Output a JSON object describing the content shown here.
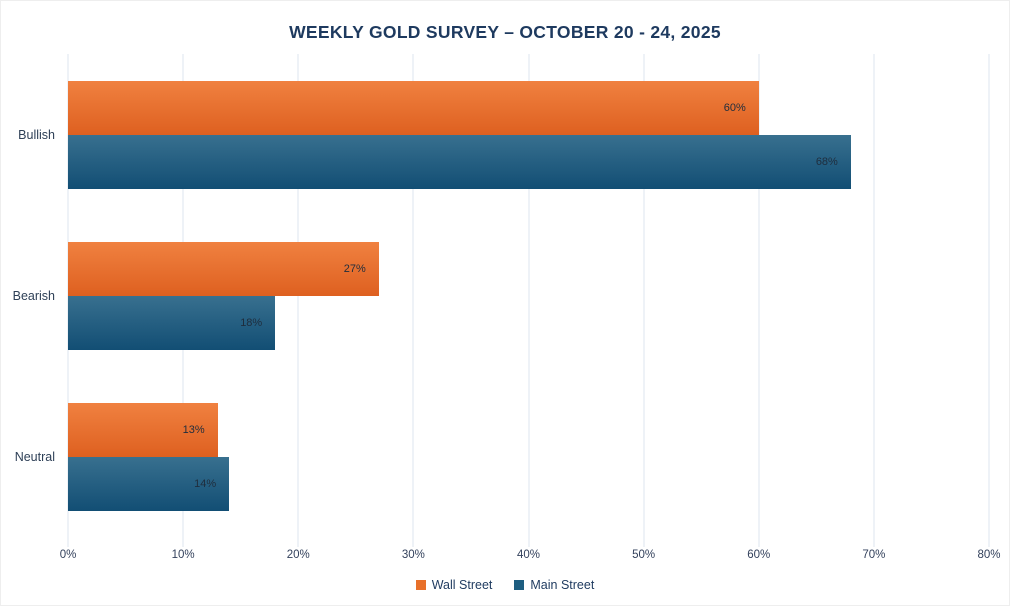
{
  "chart_data": {
    "type": "bar",
    "orientation": "horizontal",
    "title": "WEEKLY GOLD SURVEY – OCTOBER 20 - 24, 2025",
    "categories": [
      "Bullish",
      "Bearish",
      "Neutral"
    ],
    "series": [
      {
        "name": "Wall Street",
        "values": [
          60,
          27,
          13
        ],
        "legend_color": "#e8702a",
        "color_top": "#f08140",
        "color_bottom": "#de6020"
      },
      {
        "name": "Main Street",
        "values": [
          68,
          18,
          14
        ],
        "legend_color": "#1e5e81",
        "color_top": "#38708f",
        "color_bottom": "#124e74"
      }
    ],
    "value_suffix": "%",
    "data_labels": true,
    "x_axis": {
      "min": 0,
      "max": 80,
      "step": 10,
      "tick_labels": [
        "0%",
        "10%",
        "20%",
        "30%",
        "40%",
        "50%",
        "60%",
        "70%",
        "80%"
      ]
    },
    "grid": true,
    "legend_position": "bottom"
  },
  "colors": {
    "background": "#ffffff",
    "title_text": "#1e3a5f",
    "axis_text": "#33415c",
    "category_text": "#2e4057",
    "data_label_text": "#1f2d3d",
    "gridline": "#dde5ef"
  }
}
